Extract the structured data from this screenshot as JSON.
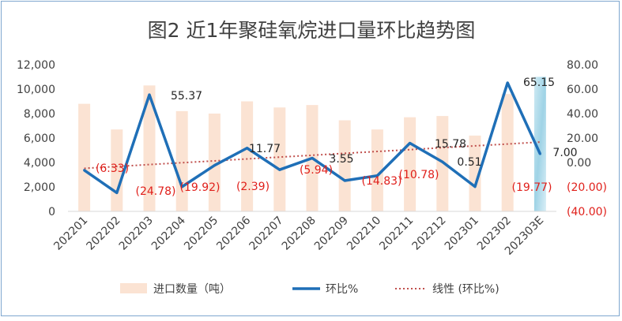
{
  "chart_data": {
    "type": "bar",
    "title": "图2  近1年聚硅氧烷进口量环比趋势图",
    "categories": [
      "202201",
      "202202",
      "202203",
      "202204",
      "202205",
      "202206",
      "202207",
      "202208",
      "202209",
      "202210",
      "202211",
      "202212",
      "202301",
      "202302",
      "202303E"
    ],
    "left_axis": {
      "ylim": [
        0,
        12000
      ],
      "ticks": [
        "0",
        "2,000",
        "4,000",
        "6,000",
        "8,000",
        "10,000",
        "12,000"
      ]
    },
    "right_axis": {
      "ylim": [
        -40,
        80
      ],
      "ticks": [
        "(40.00)",
        "(20.00)",
        "0.00",
        "20.00",
        "40.00",
        "60.00",
        "80.00"
      ]
    },
    "series": [
      {
        "name": "进口数量（吨）",
        "type": "bar",
        "axis": "left",
        "color": "#fbe3d3",
        "values": [
          8800,
          6700,
          10300,
          8200,
          8000,
          9000,
          8500,
          8700,
          7450,
          6700,
          7700,
          7800,
          6200,
          9600,
          11000
        ]
      },
      {
        "name": "环比%",
        "type": "line",
        "axis": "right",
        "color": "#1f6fb7",
        "values": [
          -6.33,
          -24.78,
          55.37,
          -19.92,
          -2.39,
          11.77,
          -5.94,
          3.55,
          -14.83,
          -10.78,
          15.78,
          0.51,
          -19.77,
          65.15,
          7.0
        ]
      },
      {
        "name": "线性 (环比%)",
        "type": "trendline",
        "axis": "right",
        "color": "#c0504d",
        "values": [
          -4.8,
          -3.3,
          -1.7,
          -0.2,
          1.3,
          2.9,
          4.4,
          5.9,
          7.5,
          9.0,
          10.5,
          12.1,
          13.6,
          15.1,
          16.7
        ]
      }
    ],
    "data_labels": [
      "(6.33)",
      "(24.78)",
      "55.37",
      "(19.92)",
      "(2.39)",
      "11.77",
      "(5.94)",
      "3.55",
      "(14.83)",
      "(10.78)",
      "15.78",
      "0.51",
      "(19.77)",
      "65.15",
      "7.00"
    ],
    "negative_label_color": "#e0201b",
    "positive_label_color": "#262626",
    "highlight_last_bar_color": "#9fd3e6",
    "legend_position": "bottom",
    "grid": false
  }
}
